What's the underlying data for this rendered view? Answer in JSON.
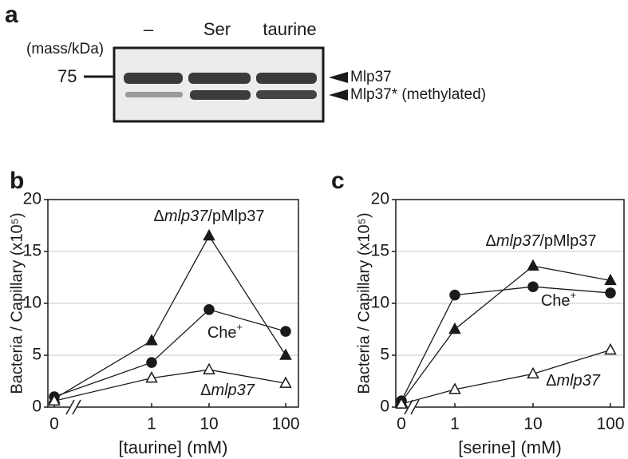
{
  "panel_a": {
    "label": "a",
    "mass_label": "(mass/kDa)",
    "marker": "75",
    "lanes": [
      "–",
      "Ser",
      "taurine"
    ],
    "bands": [
      "Mlp37",
      "Mlp37* (methylated)"
    ]
  },
  "chart_data": [
    {
      "type": "line",
      "label": "b",
      "xlabel": "[taurine] (mM)",
      "ylabel": "Bacteria / Capillary (x10⁵)",
      "categories": [
        "0",
        "1",
        "10",
        "100"
      ],
      "ylim": [
        0,
        20
      ],
      "yticks": [
        0,
        5,
        10,
        15,
        20
      ],
      "grid": true,
      "axis_break": true,
      "series": [
        {
          "name": "Δmlp37/pMlp37",
          "color": "#1a1a1a",
          "marker": "triangle",
          "filled": true,
          "values": [
            0.8,
            6.4,
            16.5,
            5.0
          ]
        },
        {
          "name": "Che+",
          "color": "#1a1a1a",
          "marker": "circle",
          "filled": true,
          "values": [
            1.0,
            4.3,
            9.4,
            7.3
          ]
        },
        {
          "name": "Δmlp37",
          "color": "#1a1a1a",
          "marker": "triangle",
          "filled": false,
          "values": [
            0.6,
            2.8,
            3.6,
            2.3
          ]
        }
      ]
    },
    {
      "type": "line",
      "label": "c",
      "xlabel": "[serine] (mM)",
      "ylabel": "Bacteria / Capillary (x10⁵)",
      "categories": [
        "0",
        "1",
        "10",
        "100"
      ],
      "ylim": [
        0,
        20
      ],
      "yticks": [
        0,
        5,
        10,
        15,
        20
      ],
      "grid": true,
      "axis_break": true,
      "series": [
        {
          "name": "Δmlp37/pMlp37",
          "color": "#1a1a1a",
          "marker": "triangle",
          "filled": true,
          "values": [
            0.5,
            7.5,
            13.6,
            12.2
          ]
        },
        {
          "name": "Che+",
          "color": "#1a1a1a",
          "marker": "circle",
          "filled": true,
          "values": [
            0.6,
            10.8,
            11.6,
            11.0
          ]
        },
        {
          "name": "Δmlp37",
          "color": "#1a1a1a",
          "marker": "triangle",
          "filled": false,
          "values": [
            0.3,
            1.7,
            3.2,
            5.5
          ]
        }
      ]
    }
  ]
}
